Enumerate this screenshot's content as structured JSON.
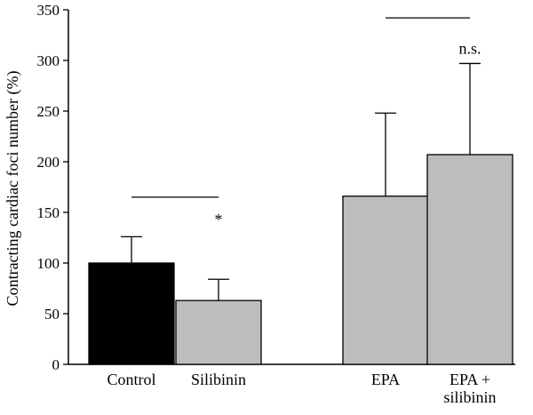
{
  "chart_data": {
    "type": "bar",
    "title": "",
    "xlabel": "",
    "ylabel": "Contracting cardiac foci number (%)",
    "ylim": [
      0,
      350
    ],
    "yticks": [
      0,
      50,
      100,
      150,
      200,
      250,
      300,
      350
    ],
    "categories": [
      {
        "label_lines": [
          "Control"
        ],
        "value": 100,
        "error": 26,
        "color": "#000000"
      },
      {
        "label_lines": [
          "Silibinin"
        ],
        "value": 63,
        "error": 21,
        "color": "#bdbdbd"
      },
      {
        "label_lines": [
          "EPA"
        ],
        "value": 166,
        "error": 82,
        "color": "#bdbdbd"
      },
      {
        "label_lines": [
          "EPA +",
          "silibinin"
        ],
        "value": 207,
        "error": 90,
        "color": "#bdbdbd"
      }
    ],
    "comparisons": [
      {
        "between": [
          0,
          1
        ],
        "bracket_y": 165,
        "label": "*",
        "label_y": 143
      },
      {
        "between": [
          2,
          3
        ],
        "bracket_y": 342,
        "label": "n.s.",
        "label_y": 312
      }
    ],
    "grid": false,
    "legend": "none"
  }
}
